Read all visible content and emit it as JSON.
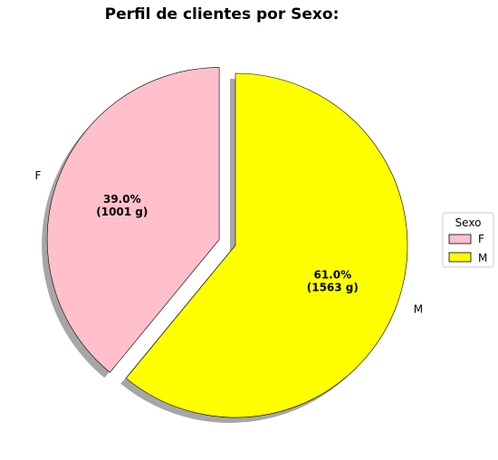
{
  "chart_data": {
    "type": "pie",
    "title": "Perfil de clientes por Sexo:",
    "categories": [
      "F",
      "M"
    ],
    "values": [
      1001,
      1563
    ],
    "percent_labels": [
      "39.0%",
      "61.0%"
    ],
    "count_labels": [
      "(1001 g)",
      "(1563 g)"
    ],
    "colors": [
      "#ffc0cb",
      "#ffff00"
    ],
    "explode": [
      0.1,
      0
    ],
    "shadow": true,
    "legend": {
      "title": "Sexo",
      "entries": [
        "F",
        "M"
      ],
      "placement": "right"
    }
  }
}
